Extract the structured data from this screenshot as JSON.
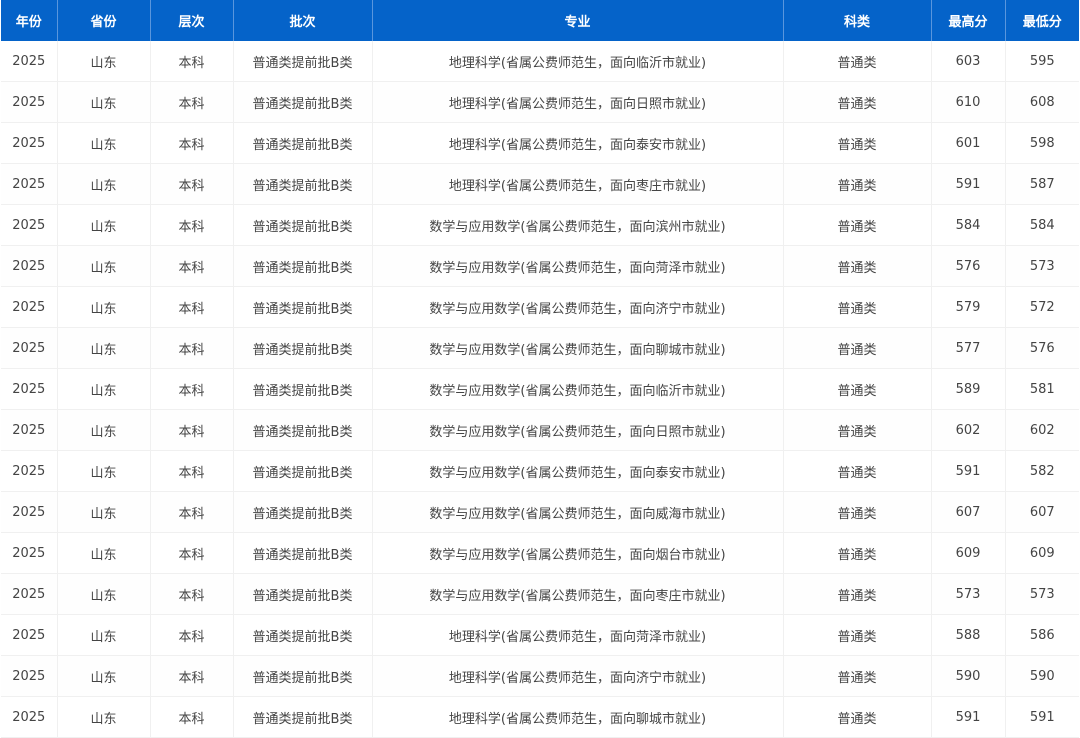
{
  "header_color": "#0563c9",
  "columns": [
    "年份",
    "省份",
    "层次",
    "批次",
    "专业",
    "科类",
    "最高分",
    "最低分"
  ],
  "rows": [
    [
      "2025",
      "山东",
      "本科",
      "普通类提前批B类",
      "地理科学(省属公费师范生，面向临沂市就业)",
      "普通类",
      "603",
      "595"
    ],
    [
      "2025",
      "山东",
      "本科",
      "普通类提前批B类",
      "地理科学(省属公费师范生，面向日照市就业)",
      "普通类",
      "610",
      "608"
    ],
    [
      "2025",
      "山东",
      "本科",
      "普通类提前批B类",
      "地理科学(省属公费师范生，面向泰安市就业)",
      "普通类",
      "601",
      "598"
    ],
    [
      "2025",
      "山东",
      "本科",
      "普通类提前批B类",
      "地理科学(省属公费师范生，面向枣庄市就业)",
      "普通类",
      "591",
      "587"
    ],
    [
      "2025",
      "山东",
      "本科",
      "普通类提前批B类",
      "数学与应用数学(省属公费师范生，面向滨州市就业)",
      "普通类",
      "584",
      "584"
    ],
    [
      "2025",
      "山东",
      "本科",
      "普通类提前批B类",
      "数学与应用数学(省属公费师范生，面向菏泽市就业)",
      "普通类",
      "576",
      "573"
    ],
    [
      "2025",
      "山东",
      "本科",
      "普通类提前批B类",
      "数学与应用数学(省属公费师范生，面向济宁市就业)",
      "普通类",
      "579",
      "572"
    ],
    [
      "2025",
      "山东",
      "本科",
      "普通类提前批B类",
      "数学与应用数学(省属公费师范生，面向聊城市就业)",
      "普通类",
      "577",
      "576"
    ],
    [
      "2025",
      "山东",
      "本科",
      "普通类提前批B类",
      "数学与应用数学(省属公费师范生，面向临沂市就业)",
      "普通类",
      "589",
      "581"
    ],
    [
      "2025",
      "山东",
      "本科",
      "普通类提前批B类",
      "数学与应用数学(省属公费师范生，面向日照市就业)",
      "普通类",
      "602",
      "602"
    ],
    [
      "2025",
      "山东",
      "本科",
      "普通类提前批B类",
      "数学与应用数学(省属公费师范生，面向泰安市就业)",
      "普通类",
      "591",
      "582"
    ],
    [
      "2025",
      "山东",
      "本科",
      "普通类提前批B类",
      "数学与应用数学(省属公费师范生，面向威海市就业)",
      "普通类",
      "607",
      "607"
    ],
    [
      "2025",
      "山东",
      "本科",
      "普通类提前批B类",
      "数学与应用数学(省属公费师范生，面向烟台市就业)",
      "普通类",
      "609",
      "609"
    ],
    [
      "2025",
      "山东",
      "本科",
      "普通类提前批B类",
      "数学与应用数学(省属公费师范生，面向枣庄市就业)",
      "普通类",
      "573",
      "573"
    ],
    [
      "2025",
      "山东",
      "本科",
      "普通类提前批B类",
      "地理科学(省属公费师范生，面向菏泽市就业)",
      "普通类",
      "588",
      "586"
    ],
    [
      "2025",
      "山东",
      "本科",
      "普通类提前批B类",
      "地理科学(省属公费师范生，面向济宁市就业)",
      "普通类",
      "590",
      "590"
    ],
    [
      "2025",
      "山东",
      "本科",
      "普通类提前批B类",
      "地理科学(省属公费师范生，面向聊城市就业)",
      "普通类",
      "591",
      "591"
    ]
  ]
}
